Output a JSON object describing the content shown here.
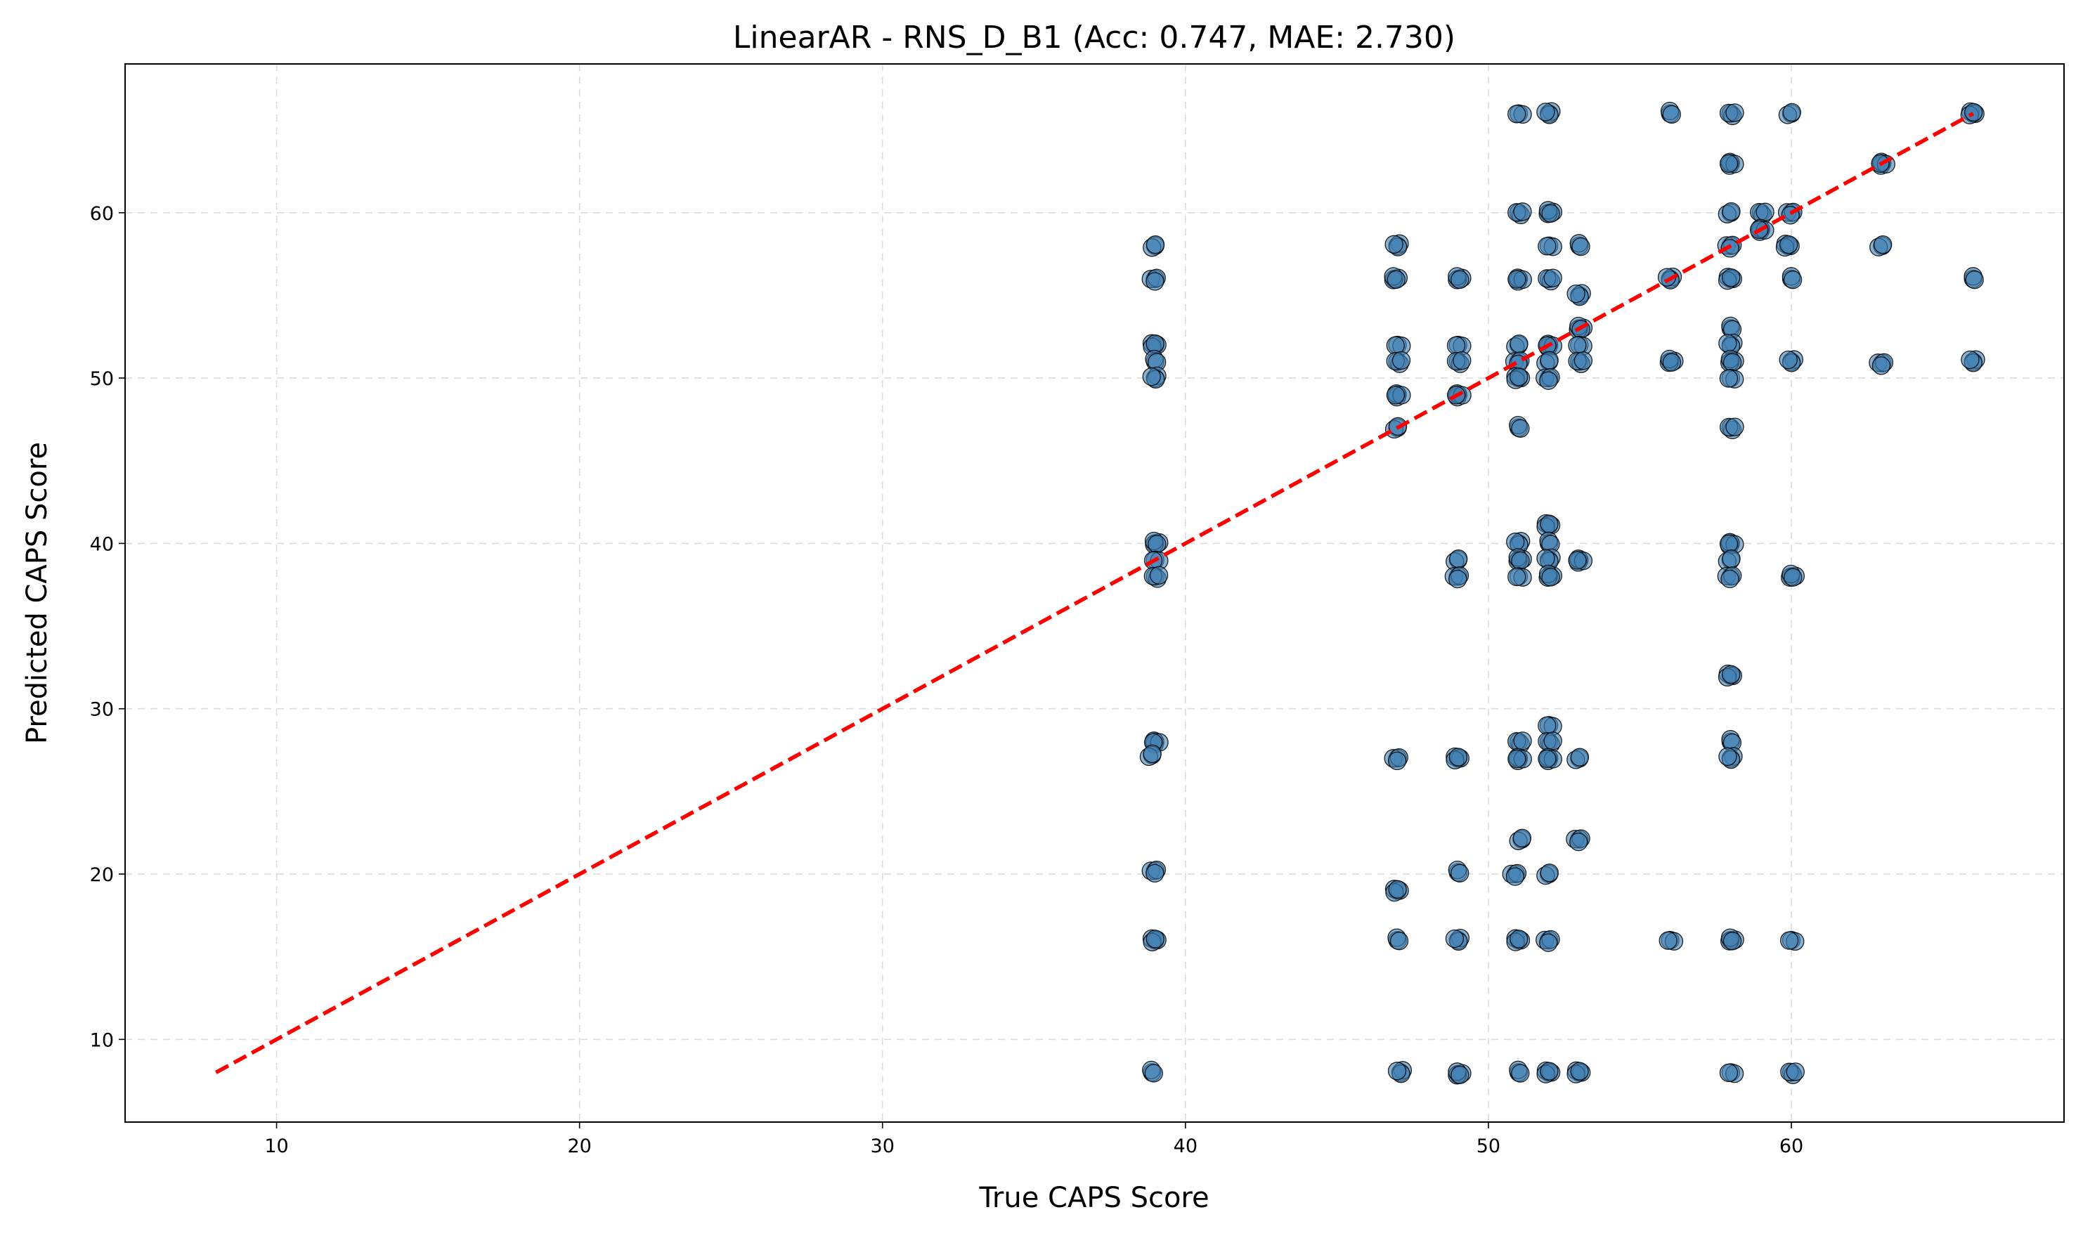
{
  "chart_data": {
    "type": "scatter",
    "title": "LinearAR - RNS_D_B1 (Acc: 0.747, MAE: 2.730)",
    "xlabel": "True CAPS Score",
    "ylabel": "Predicted CAPS Score",
    "xlim": [
      5,
      69
    ],
    "ylim": [
      5,
      69
    ],
    "xticks": [
      10,
      20,
      30,
      40,
      50,
      60
    ],
    "yticks": [
      10,
      20,
      30,
      40,
      50,
      60
    ],
    "grid": true,
    "legend": "none",
    "point_color": "#4682b4",
    "reference_line": {
      "x": [
        8,
        66
      ],
      "y": [
        8,
        66
      ],
      "color": "#ff0000",
      "style": "dashed"
    },
    "series": [
      {
        "points": [
          [
            39,
            58
          ],
          [
            39,
            56
          ],
          [
            39,
            52
          ],
          [
            39,
            51
          ],
          [
            39,
            50
          ],
          [
            39,
            40
          ],
          [
            39,
            39
          ],
          [
            39,
            38
          ],
          [
            39,
            28
          ],
          [
            38.9,
            27.2
          ],
          [
            39,
            20.2
          ],
          [
            39,
            16
          ],
          [
            38.9,
            8
          ],
          [
            47,
            58
          ],
          [
            46.9,
            56
          ],
          [
            47,
            52
          ],
          [
            47,
            51
          ],
          [
            47,
            49
          ],
          [
            47,
            47
          ],
          [
            47,
            27
          ],
          [
            47,
            19
          ],
          [
            47,
            16
          ],
          [
            47.1,
            8
          ],
          [
            49,
            56
          ],
          [
            49,
            52
          ],
          [
            49,
            51
          ],
          [
            49,
            49
          ],
          [
            49,
            39
          ],
          [
            49,
            38
          ],
          [
            49,
            27
          ],
          [
            49,
            20.1
          ],
          [
            49,
            16
          ],
          [
            49,
            7.9
          ],
          [
            51,
            66
          ],
          [
            51,
            60
          ],
          [
            51,
            56
          ],
          [
            51,
            52
          ],
          [
            51,
            51
          ],
          [
            51,
            50
          ],
          [
            51,
            47
          ],
          [
            51,
            40
          ],
          [
            51,
            39
          ],
          [
            51,
            38
          ],
          [
            51,
            28
          ],
          [
            51,
            27
          ],
          [
            51.1,
            22.1
          ],
          [
            50.9,
            20
          ],
          [
            51,
            16
          ],
          [
            51,
            8
          ],
          [
            52,
            66
          ],
          [
            52,
            60
          ],
          [
            52,
            58
          ],
          [
            52,
            56
          ],
          [
            52,
            52
          ],
          [
            52,
            51
          ],
          [
            52,
            50
          ],
          [
            52,
            41.1
          ],
          [
            52,
            40
          ],
          [
            52,
            39
          ],
          [
            52,
            38
          ],
          [
            52,
            29
          ],
          [
            52,
            28
          ],
          [
            52,
            27
          ],
          [
            52,
            20
          ],
          [
            52,
            16
          ],
          [
            52,
            8
          ],
          [
            53,
            58
          ],
          [
            53,
            55
          ],
          [
            53,
            53
          ],
          [
            53,
            52
          ],
          [
            53,
            51
          ],
          [
            53,
            39
          ],
          [
            53,
            27
          ],
          [
            53,
            22.1
          ],
          [
            53,
            8
          ],
          [
            56,
            66
          ],
          [
            56,
            56
          ],
          [
            56,
            51
          ],
          [
            56,
            16
          ],
          [
            58,
            66
          ],
          [
            58,
            63
          ],
          [
            58,
            60
          ],
          [
            58,
            58
          ],
          [
            58,
            56
          ],
          [
            58,
            53
          ],
          [
            58,
            52
          ],
          [
            58,
            51
          ],
          [
            58,
            50
          ],
          [
            58,
            47
          ],
          [
            58,
            40
          ],
          [
            58,
            39
          ],
          [
            58,
            38
          ],
          [
            58,
            32
          ],
          [
            58,
            28
          ],
          [
            58,
            27
          ],
          [
            58,
            16
          ],
          [
            58,
            8
          ],
          [
            59,
            60
          ],
          [
            59,
            59
          ],
          [
            60,
            66
          ],
          [
            60,
            60
          ],
          [
            59.9,
            58
          ],
          [
            60,
            56
          ],
          [
            60,
            51
          ],
          [
            60,
            38
          ],
          [
            60,
            16
          ],
          [
            60,
            8
          ],
          [
            63,
            63
          ],
          [
            63,
            58
          ],
          [
            63,
            50.9
          ],
          [
            66,
            66
          ],
          [
            66,
            56
          ],
          [
            66,
            51
          ]
        ]
      }
    ]
  }
}
